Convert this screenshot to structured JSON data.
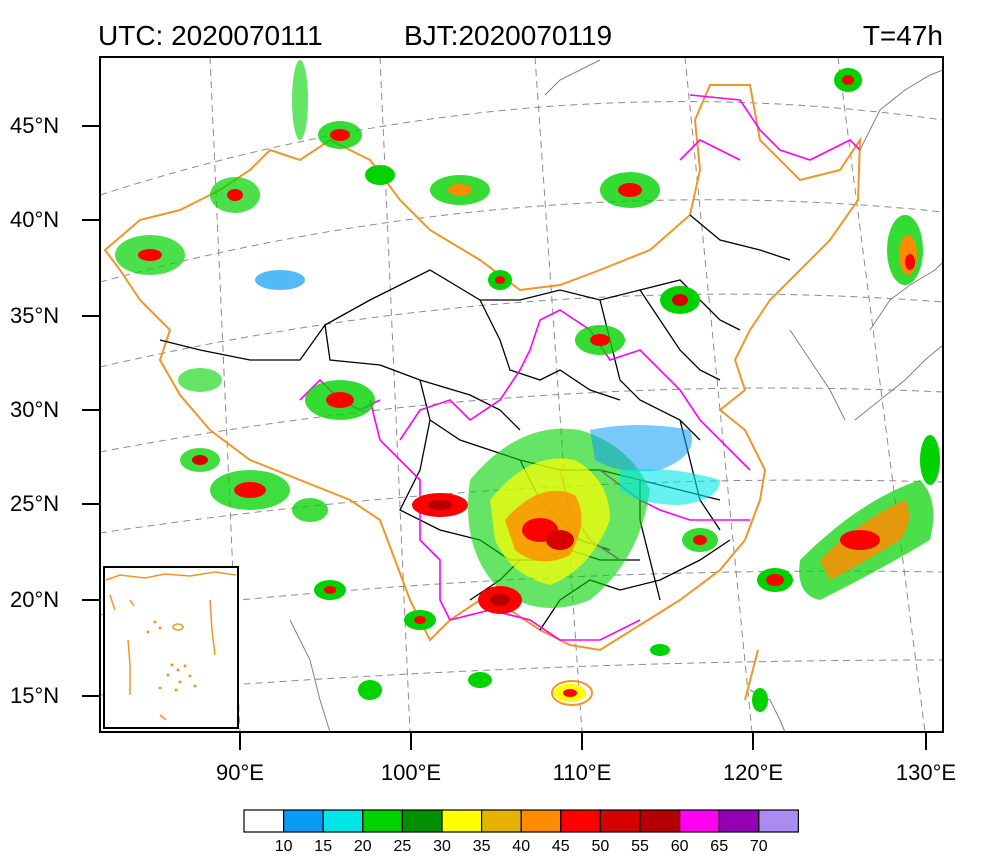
{
  "header": {
    "utc": "UTC: 2020070111",
    "bjt": "BJT:2020070119",
    "forecast": "T=47h"
  },
  "axes": {
    "lat_labels": [
      "45°N",
      "40°N",
      "35°N",
      "30°N",
      "25°N",
      "20°N",
      "15°N"
    ],
    "lon_labels": [
      "90°E",
      "100°E",
      "110°E",
      "120°E",
      "130°E"
    ]
  },
  "legend": {
    "colors": [
      "#ffffff",
      "#0a9cf5",
      "#00e6e6",
      "#00d200",
      "#009000",
      "#ffff00",
      "#e6b400",
      "#ff8c00",
      "#ff0000",
      "#d70000",
      "#b40000",
      "#ff00f0",
      "#9600b4",
      "#aa8cf0"
    ],
    "labels": [
      "10",
      "15",
      "20",
      "25",
      "30",
      "35",
      "40",
      "45",
      "50",
      "55",
      "60",
      "65",
      "70"
    ]
  },
  "colors": {
    "province_border": "#000000",
    "national_border": "#f09628",
    "river_basin": "#ff00ff",
    "coastline": "#808080",
    "graticule": "#8c8c8c"
  }
}
